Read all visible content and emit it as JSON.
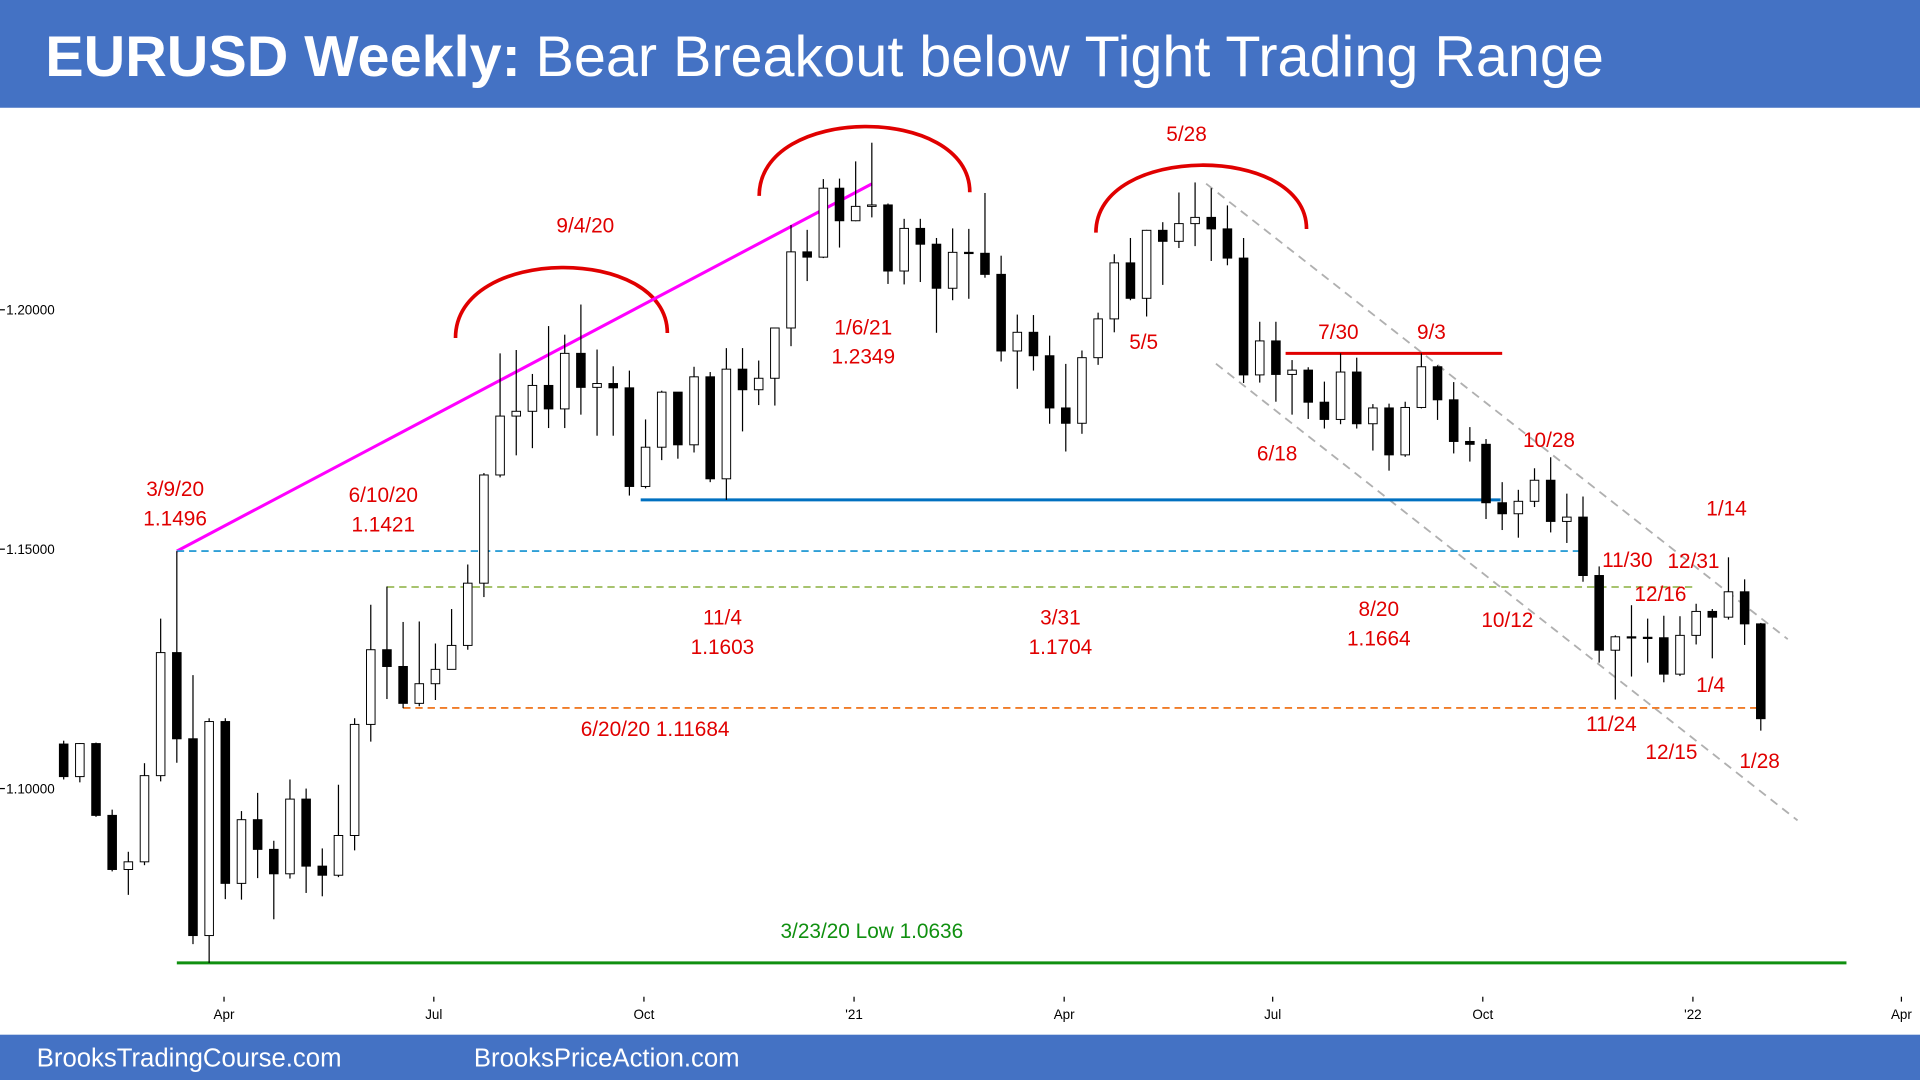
{
  "header": {
    "title_bold": "EURUSD Weekly:",
    "title_rest": "Bear Breakout below Tight Trading Range"
  },
  "footer": {
    "left": "BrooksTradingCourse.com",
    "right": "BrooksPriceAction.com"
  },
  "chart_data": {
    "type": "candlestick",
    "open": [
      1.1093,
      1.1025,
      1.1094,
      1.0944,
      1.0831,
      1.0847,
      1.1027,
      1.1284,
      1.1104,
      1.0693,
      1.114,
      1.0802,
      1.0935,
      1.0873,
      1.0822,
      1.0978,
      1.0838,
      1.0819,
      1.0902,
      1.1134,
      1.129,
      1.1255,
      1.1178,
      1.1219,
      1.1249,
      1.1299,
      1.1429,
      1.1655,
      1.1778,
      1.1788,
      1.1842,
      1.1793,
      1.1909,
      1.1838,
      1.1846,
      1.1837,
      1.1631,
      1.1713,
      1.1828,
      1.1718,
      1.186,
      1.1647,
      1.1876,
      1.1833,
      1.1857,
      1.1962,
      1.2121,
      1.211,
      1.2254,
      1.2186,
      1.2216,
      1.2219,
      1.2081,
      1.217,
      1.2137,
      1.2045,
      1.212,
      1.2118,
      1.2074,
      1.1914,
      1.1953,
      1.1904,
      1.1795,
      1.1763,
      1.19,
      1.1981,
      1.2098,
      1.2024,
      1.2166,
      1.2143,
      1.218,
      1.2193,
      1.2169,
      1.2108,
      1.1864,
      1.1935,
      1.1865,
      1.1874,
      1.1807,
      1.1771,
      1.187,
      1.1762,
      1.1795,
      1.1697,
      1.1796,
      1.1881,
      1.1812,
      1.1725,
      1.1719,
      1.1597,
      1.1574,
      1.16,
      1.1644,
      1.1558,
      1.1567,
      1.1445,
      1.1289,
      1.1317,
      1.1316,
      1.1315,
      1.1239,
      1.132,
      1.137,
      1.1358,
      1.1411,
      1.1344
    ],
    "high": [
      1.11,
      1.1095,
      1.1096,
      1.0956,
      1.0868,
      1.1053,
      1.1355,
      1.1496,
      1.1237,
      1.1147,
      1.1147,
      1.0953,
      1.0991,
      1.0891,
      1.1019,
      1.1,
      1.0875,
      1.1008,
      1.1147,
      1.1384,
      1.1422,
      1.1348,
      1.1349,
      1.1303,
      1.1375,
      1.1468,
      1.1659,
      1.1909,
      1.1916,
      1.1866,
      1.1966,
      1.1948,
      1.2011,
      1.1917,
      1.1882,
      1.1873,
      1.1771,
      1.1831,
      1.1826,
      1.1881,
      1.187,
      1.192,
      1.192,
      1.1894,
      1.1963,
      1.2177,
      1.2167,
      1.2273,
      1.2274,
      1.231,
      1.2349,
      1.2222,
      1.219,
      1.219,
      1.215,
      1.217,
      1.2169,
      1.2244,
      1.2113,
      1.199,
      1.1989,
      1.1946,
      1.1887,
      1.1915,
      1.1994,
      1.2116,
      1.215,
      1.2167,
      1.2183,
      1.2245,
      1.2266,
      1.2254,
      1.2218,
      1.215,
      1.1975,
      1.1975,
      1.1895,
      1.188,
      1.185,
      1.1909,
      1.19,
      1.1803,
      1.1804,
      1.1808,
      1.1909,
      1.1884,
      1.1849,
      1.1755,
      1.173,
      1.164,
      1.1624,
      1.1669,
      1.1692,
      1.1616,
      1.161,
      1.1464,
      1.132,
      1.1383,
      1.1355,
      1.1361,
      1.136,
      1.1386,
      1.1375,
      1.1483,
      1.1437,
      1.1346
    ],
    "low": [
      1.1019,
      1.1013,
      1.0941,
      1.0827,
      1.0778,
      1.084,
      1.1015,
      1.1054,
      1.0675,
      1.0636,
      1.0769,
      1.0768,
      1.0813,
      1.0727,
      1.0812,
      1.0782,
      1.0775,
      1.0815,
      1.0871,
      1.1098,
      1.1187,
      1.1168,
      1.1172,
      1.1185,
      1.1254,
      1.129,
      1.14,
      1.165,
      1.1696,
      1.1711,
      1.1753,
      1.1753,
      1.1781,
      1.1737,
      1.1737,
      1.1612,
      1.1627,
      1.1686,
      1.1689,
      1.1702,
      1.164,
      1.1603,
      1.1746,
      1.1801,
      1.18,
      1.1924,
      1.206,
      1.2108,
      1.213,
      1.2185,
      1.2193,
      1.2054,
      1.2053,
      1.2058,
      1.1952,
      1.202,
      1.2023,
      1.2067,
      1.1892,
      1.1835,
      1.1873,
      1.1762,
      1.1704,
      1.1741,
      1.1885,
      1.1953,
      1.202,
      1.1986,
      1.2052,
      1.2129,
      1.2133,
      1.2102,
      1.2093,
      1.1847,
      1.1848,
      1.1808,
      1.1781,
      1.1772,
      1.1752,
      1.1761,
      1.1752,
      1.1706,
      1.1664,
      1.1693,
      1.1794,
      1.177,
      1.17,
      1.1683,
      1.1563,
      1.154,
      1.1524,
      1.1588,
      1.1535,
      1.1513,
      1.1432,
      1.1263,
      1.1186,
      1.1234,
      1.1263,
      1.1222,
      1.1235,
      1.1301,
      1.1272,
      1.1353,
      1.13,
      1.1121
    ],
    "close": [
      1.1025,
      1.1094,
      1.0944,
      1.0831,
      1.0847,
      1.1027,
      1.1284,
      1.1104,
      1.0693,
      1.114,
      1.0802,
      1.0935,
      1.0873,
      1.0822,
      1.0978,
      1.0838,
      1.0819,
      1.0902,
      1.1134,
      1.129,
      1.1255,
      1.1178,
      1.1219,
      1.1249,
      1.1299,
      1.1429,
      1.1655,
      1.1778,
      1.1788,
      1.1842,
      1.1793,
      1.1909,
      1.1838,
      1.1846,
      1.1837,
      1.1631,
      1.1713,
      1.1828,
      1.1718,
      1.186,
      1.1647,
      1.1876,
      1.1833,
      1.1857,
      1.1962,
      1.2121,
      1.211,
      1.2254,
      1.2186,
      1.2216,
      1.2219,
      1.2081,
      1.217,
      1.2137,
      1.2045,
      1.212,
      1.2118,
      1.2074,
      1.1914,
      1.1953,
      1.1904,
      1.1795,
      1.1763,
      1.19,
      1.1981,
      1.2098,
      1.2024,
      1.2166,
      1.2143,
      1.218,
      1.2193,
      1.2169,
      1.2108,
      1.1864,
      1.1935,
      1.1865,
      1.1874,
      1.1807,
      1.1771,
      1.187,
      1.1762,
      1.1795,
      1.1697,
      1.1796,
      1.1881,
      1.1812,
      1.1725,
      1.1719,
      1.1597,
      1.1574,
      1.16,
      1.1644,
      1.1558,
      1.1567,
      1.1445,
      1.1289,
      1.1317,
      1.1316,
      1.1315,
      1.1239,
      1.132,
      1.137,
      1.1358,
      1.1411,
      1.1344,
      1.1146
    ],
    "up_color": "#ffffff",
    "down_color": "#000000",
    "xlim": [
      -3.94,
      114.85
    ],
    "xticks": [
      {
        "value": 9.92,
        "label": "Apr"
      },
      {
        "value": 22.9,
        "label": "Jul"
      },
      {
        "value": 35.9,
        "label": "Oct"
      },
      {
        "value": 48.9,
        "label": "'21"
      },
      {
        "value": 61.9,
        "label": "Apr"
      },
      {
        "value": 74.8,
        "label": "Jul"
      },
      {
        "value": 87.8,
        "label": "Oct"
      },
      {
        "value": 100.8,
        "label": "'22"
      },
      {
        "value": 113.7,
        "label": "Apr"
      }
    ],
    "ylim": [
      1.055,
      1.2425
    ],
    "yticks": [
      {
        "value": 1.1,
        "label": "1.10000"
      },
      {
        "value": 1.15,
        "label": "1.15000"
      },
      {
        "value": 1.2,
        "label": "1.20000"
      }
    ],
    "overlays": [
      {
        "x": [
          7,
          50
        ],
        "y": [
          1.1496,
          1.2263
        ],
        "color": "#ff00ff",
        "style": "solid"
      },
      {
        "x": [
          7,
          93.8
        ],
        "y": [
          1.1496,
          1.1496
        ],
        "color": "#2e9fd6",
        "style": "dashed"
      },
      {
        "x": [
          20,
          101
        ],
        "y": [
          1.1421,
          1.1421
        ],
        "color": "#9bbb59",
        "style": "dashed"
      },
      {
        "x": [
          21,
          105
        ],
        "y": [
          1.11684,
          1.11684
        ],
        "color": "#f07c28",
        "style": "dashed"
      },
      {
        "x": [
          35.7,
          88.9
        ],
        "y": [
          1.1603,
          1.1603
        ],
        "color": "#0070c0",
        "style": "solid"
      },
      {
        "x": [
          7,
          110.3
        ],
        "y": [
          1.0636,
          1.0636
        ],
        "color": "#109010",
        "style": "solid"
      },
      {
        "x": [
          75.6,
          89
        ],
        "y": [
          1.1909,
          1.1909
        ],
        "color": "#e00000",
        "style": "solid"
      }
    ],
    "annotations": [
      {
        "lines": [
          "9/4/20"
        ],
        "color": "#e00000"
      },
      {
        "lines": [
          "3/9/20",
          "1.1496"
        ],
        "color": "#e00000"
      },
      {
        "lines": [
          "6/10/20",
          "1.1421"
        ],
        "color": "#e00000"
      },
      {
        "lines": [
          "1/6/21",
          "1.2349"
        ],
        "color": "#e00000"
      },
      {
        "lines": [
          "5/28"
        ],
        "color": "#e00000"
      },
      {
        "lines": [
          "5/5"
        ],
        "color": "#e00000"
      },
      {
        "lines": [
          "7/30"
        ],
        "color": "#e00000"
      },
      {
        "lines": [
          "9/3"
        ],
        "color": "#e00000"
      },
      {
        "lines": [
          "6/18"
        ],
        "color": "#e00000"
      },
      {
        "lines": [
          "10/28"
        ],
        "color": "#e00000"
      },
      {
        "lines": [
          "1/14"
        ],
        "color": "#e00000"
      },
      {
        "lines": [
          "11/30"
        ],
        "color": "#e00000"
      },
      {
        "lines": [
          "12/31"
        ],
        "color": "#e00000"
      },
      {
        "lines": [
          "12/16"
        ],
        "color": "#e00000"
      },
      {
        "lines": [
          "10/12"
        ],
        "color": "#e00000"
      },
      {
        "lines": [
          "11/4",
          "1.1603"
        ],
        "color": "#e00000"
      },
      {
        "lines": [
          "3/31",
          "1.1704"
        ],
        "color": "#e00000"
      },
      {
        "lines": [
          "8/20",
          "1.1664"
        ],
        "color": "#e00000"
      },
      {
        "lines": [
          "6/20/20 1.11684"
        ],
        "color": "#e00000"
      },
      {
        "lines": [
          "1/4"
        ],
        "color": "#e00000"
      },
      {
        "lines": [
          "11/24"
        ],
        "color": "#e00000"
      },
      {
        "lines": [
          "12/15"
        ],
        "color": "#e00000"
      },
      {
        "lines": [
          "1/28"
        ],
        "color": "#e00000"
      },
      {
        "lines": [
          "3/23/20 Low 1.0636"
        ],
        "color": "#109010"
      }
    ]
  }
}
